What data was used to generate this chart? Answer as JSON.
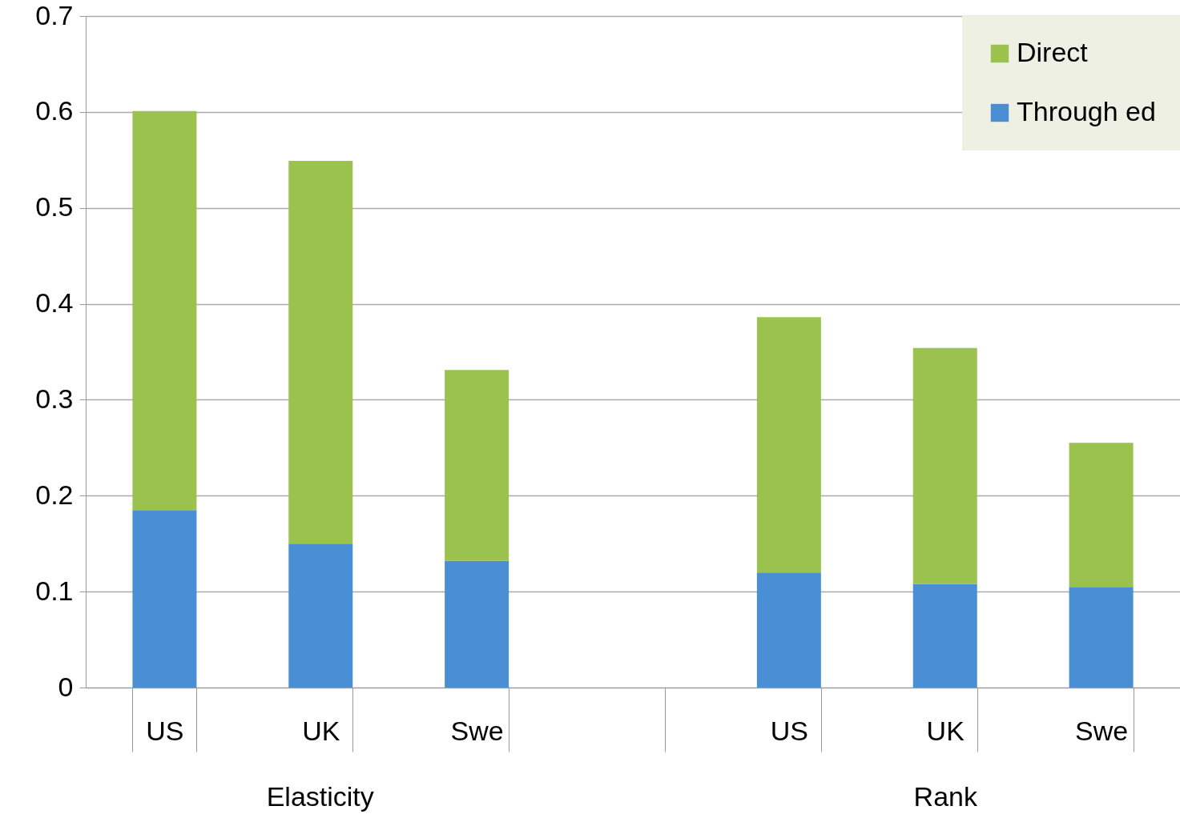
{
  "chart_data": {
    "type": "bar",
    "stacked": true,
    "categories": [
      "US",
      "UK",
      "Swe",
      null,
      "US",
      "UK",
      "Swe"
    ],
    "series": [
      {
        "name": "Through ed",
        "color": "#4a8fd4",
        "values": [
          0.185,
          0.15,
          0.132,
          null,
          0.12,
          0.108,
          0.105
        ]
      },
      {
        "name": "Direct",
        "color": "#9bc24f",
        "values": [
          0.416,
          0.399,
          0.199,
          null,
          0.266,
          0.246,
          0.15
        ]
      }
    ],
    "annotations": [
      "Elasticity",
      "Rank"
    ],
    "ylim": [
      0,
      0.7
    ],
    "yticks": [
      0,
      0.1,
      0.2,
      0.3,
      0.4,
      0.5,
      0.6,
      0.7
    ],
    "grid": "y",
    "legend": "top right"
  }
}
